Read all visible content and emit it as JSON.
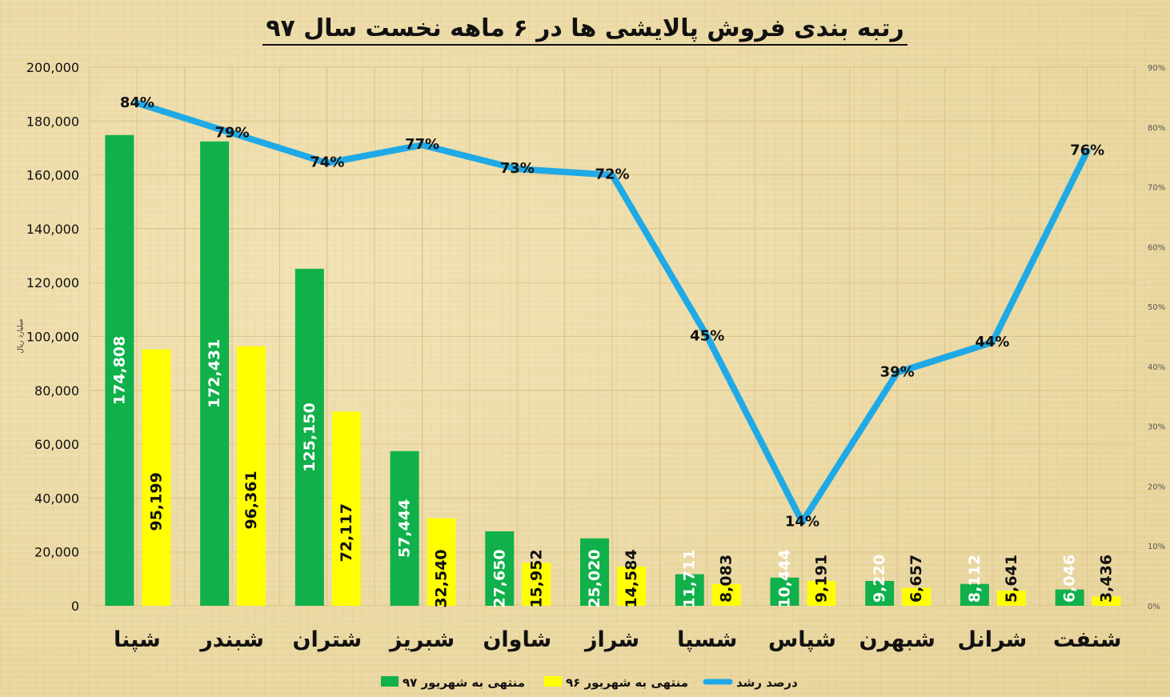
{
  "colors": {
    "series97": "#10b04b",
    "series96": "#ffff00",
    "growth": "#1fa9e6"
  },
  "chart_data": {
    "type": "bar",
    "title": "رتبه بندی فروش پالایشی ها در ۶ ماهه نخست سال ۹۷",
    "ylabel": "میلیارد ریال",
    "categories": [
      "شپنا",
      "شبندر",
      "شتران",
      "شبریز",
      "شاوان",
      "شراز",
      "شسپا",
      "شپاس",
      "شبهرن",
      "شرانل",
      "شنفت"
    ],
    "series": [
      {
        "name": "منتهی به شهریور ۹۷",
        "values": [
          174808,
          172431,
          125150,
          57444,
          27650,
          25020,
          11711,
          10444,
          9220,
          8112,
          6046
        ]
      },
      {
        "name": "منتهی به شهریور ۹۶",
        "values": [
          95199,
          96361,
          72117,
          32540,
          15952,
          14584,
          8083,
          9191,
          6657,
          5641,
          3436
        ]
      },
      {
        "name": "درصد رشد",
        "type": "line",
        "axis": "right",
        "values": [
          84,
          79,
          74,
          77,
          73,
          72,
          45,
          14,
          39,
          44,
          76
        ]
      }
    ],
    "bar_labels_97": [
      "174,808",
      "172,431",
      "125,150",
      "57,444",
      "27,650",
      "25,020",
      "11,711",
      "10,444",
      "9,220",
      "8,112",
      "6,046"
    ],
    "bar_labels_96": [
      "95,199",
      "96,361",
      "72,117",
      "32,540",
      "15,952",
      "14,584",
      "8,083",
      "9,191",
      "6,657",
      "5,641",
      "3,436"
    ],
    "growth_labels": [
      "84%",
      "79%",
      "74%",
      "77%",
      "73%",
      "72%",
      "45%",
      "14%",
      "39%",
      "44%",
      "76%"
    ],
    "ylim": [
      0,
      200000
    ],
    "yticks": [
      "0",
      "20,000",
      "40,000",
      "60,000",
      "80,000",
      "100,000",
      "120,000",
      "140,000",
      "160,000",
      "180,000",
      "200,000"
    ],
    "y2lim": [
      0,
      90
    ],
    "y2ticks": [
      "0%",
      "10%",
      "20%",
      "30%",
      "40%",
      "50%",
      "60%",
      "70%",
      "80%",
      "90%"
    ],
    "grid": true,
    "legend_position": "bottom"
  }
}
